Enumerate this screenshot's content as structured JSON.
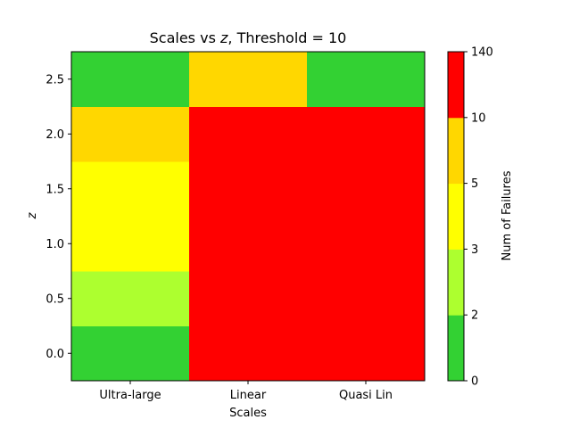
{
  "chart_data": {
    "type": "heatmap",
    "title": "Scales vs z, Threshold = 10",
    "title_prefix": "Scales vs ",
    "title_var": "z",
    "title_suffix": ", Threshold = 10",
    "xlabel": "Scales",
    "ylabel": "z",
    "x_categories": [
      "Ultra-large",
      "Linear",
      "Quasi Lin"
    ],
    "y_values": [
      0.0,
      0.5,
      1.0,
      1.5,
      2.0,
      2.5
    ],
    "y_ticks": [
      "0.0",
      "0.5",
      "1.0",
      "1.5",
      "2.0",
      "2.5"
    ],
    "ylim": [
      -0.25,
      2.75
    ],
    "grid": false,
    "values": [
      [
        0,
        200,
        200
      ],
      [
        2,
        200,
        200
      ],
      [
        3,
        200,
        200
      ],
      [
        3,
        200,
        200
      ],
      [
        8,
        200,
        200
      ],
      [
        0,
        8,
        0
      ]
    ],
    "colorbar": {
      "label": "Num of Failures",
      "boundaries": [
        0,
        2,
        3,
        5,
        10,
        140
      ],
      "tick_labels": [
        "0",
        "2",
        "3",
        "5",
        "10",
        "140"
      ],
      "colors": [
        "#33d133",
        "#adff2f",
        "#ffff00",
        "#ffd700",
        "#ff0000"
      ]
    }
  }
}
